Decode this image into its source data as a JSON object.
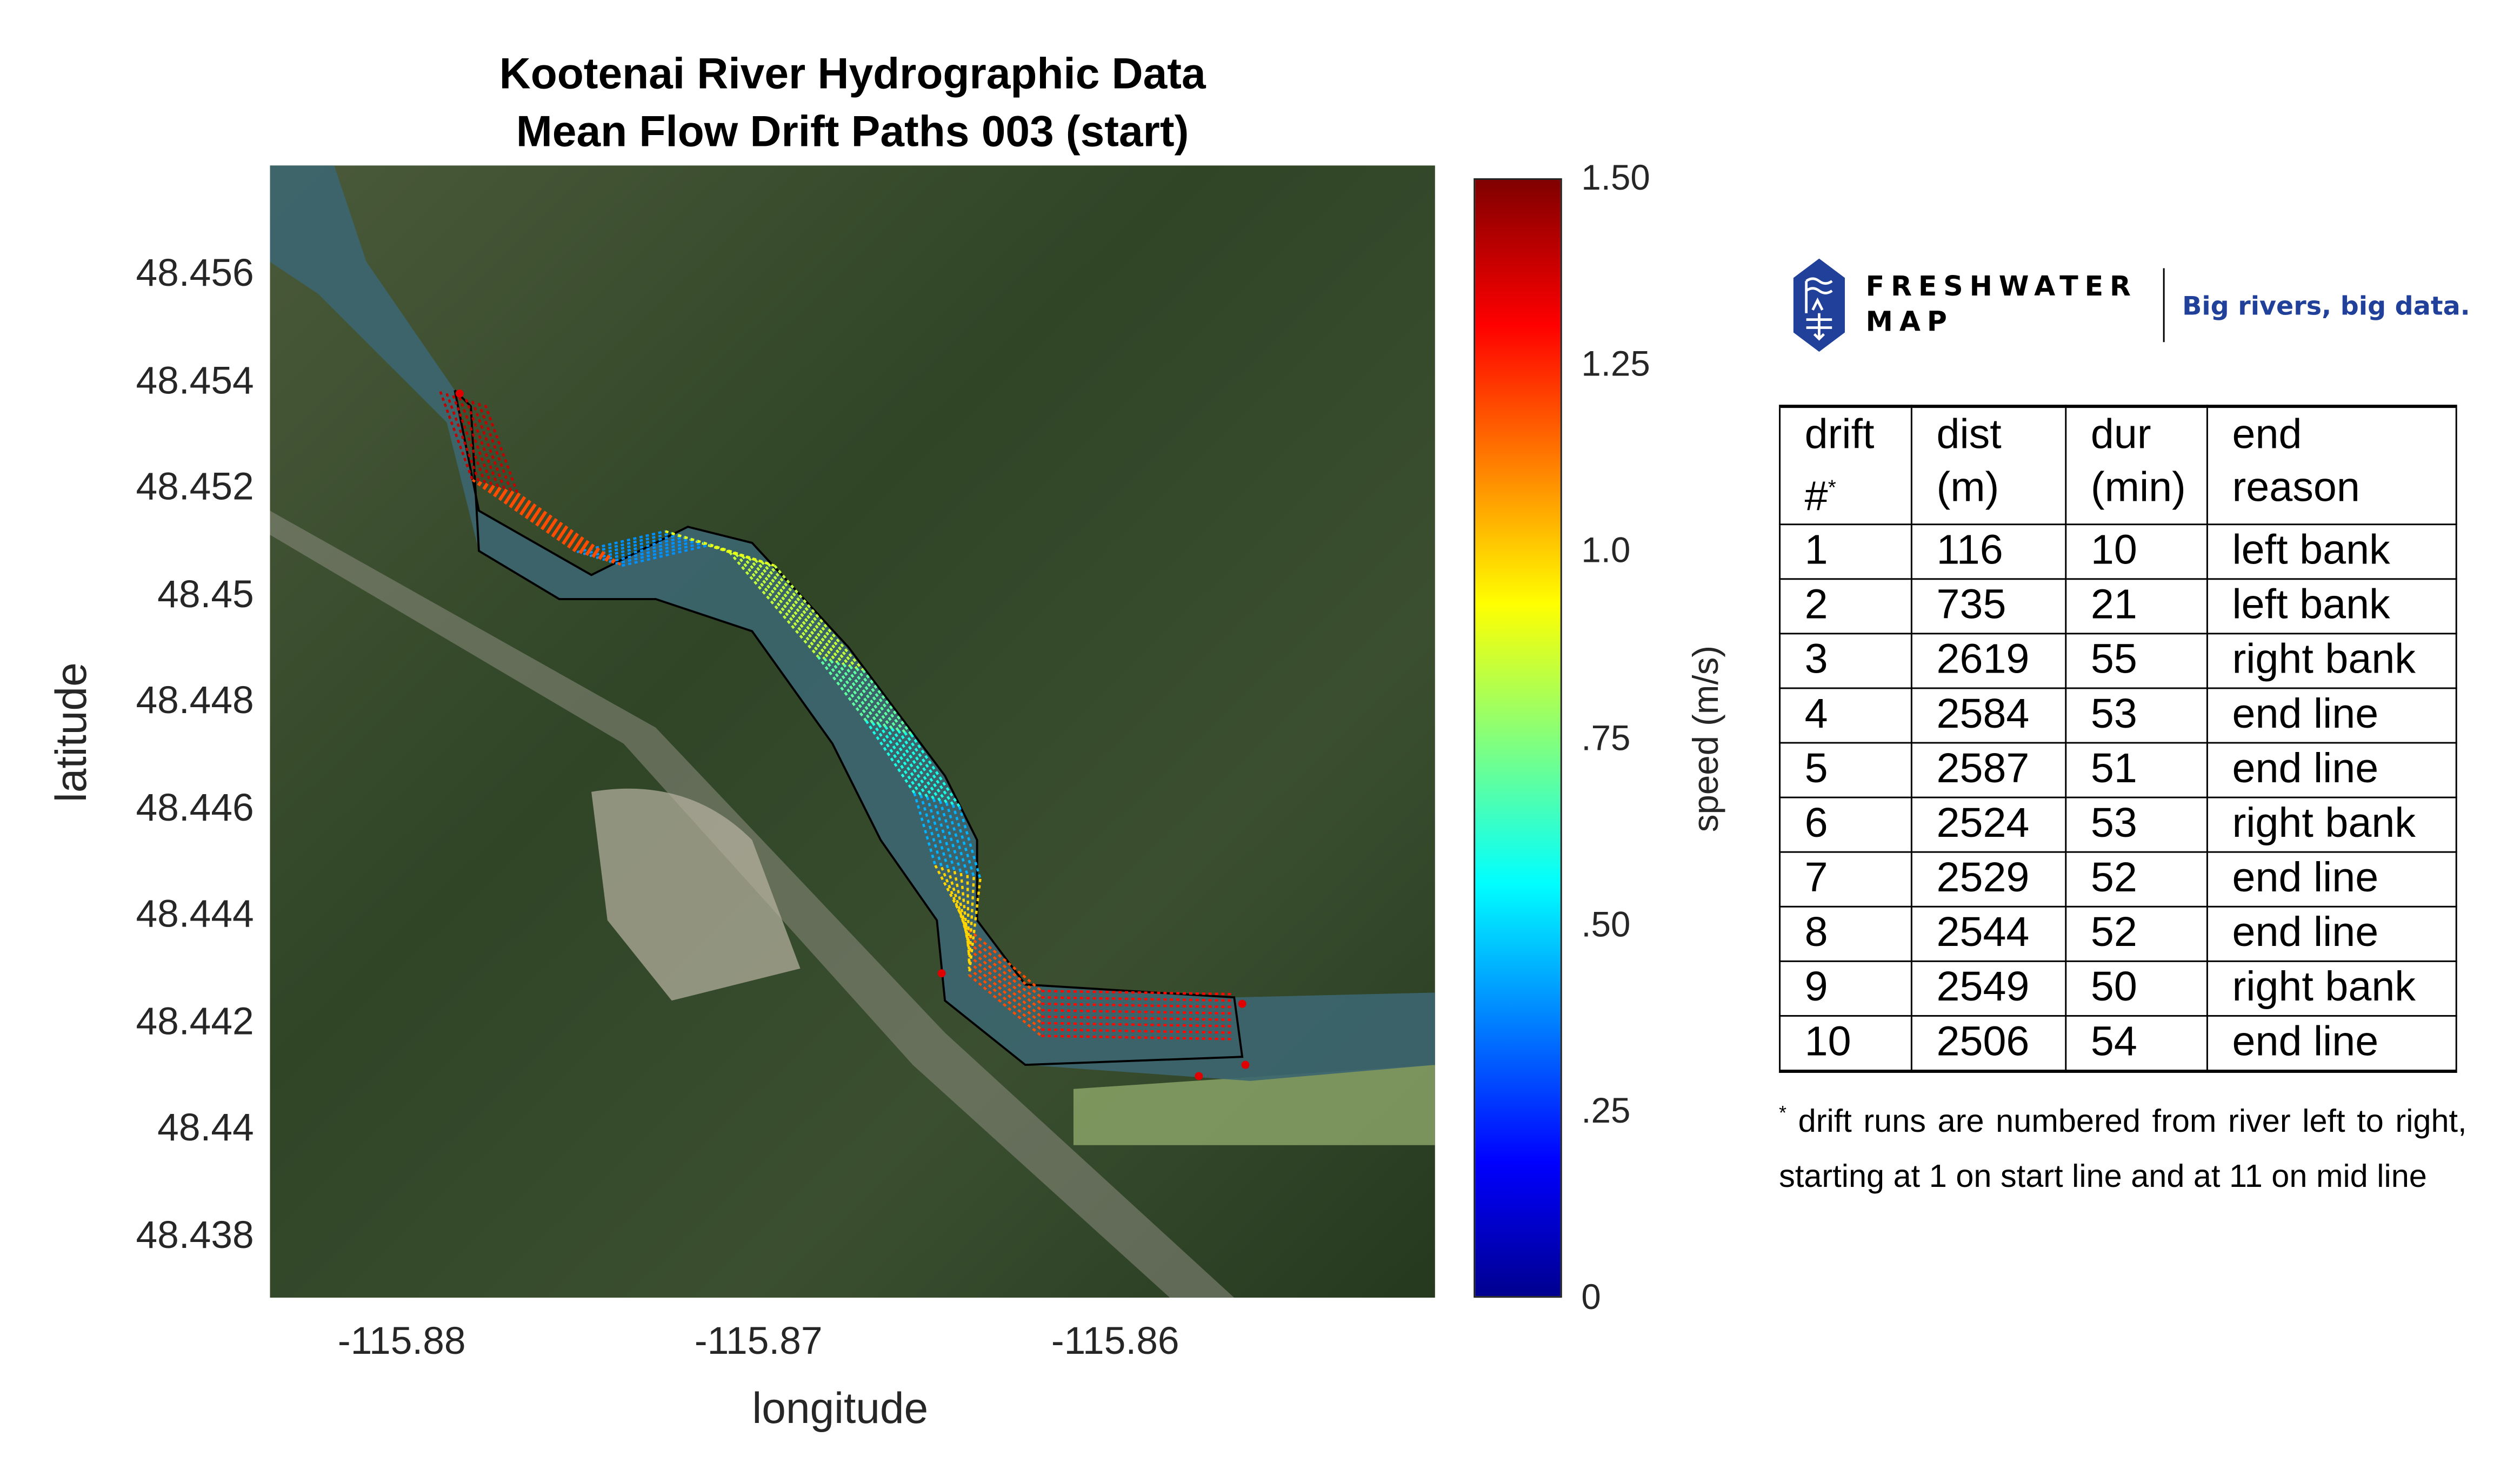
{
  "title_line1": "Kootenai River Hydrographic Data",
  "title_line2": "Mean Flow Drift Paths 003 (start)",
  "map": {
    "xlabel": "longitude",
    "ylabel": "latitude",
    "x_ticks": [
      "-115.88",
      "-115.87",
      "-115.86"
    ],
    "y_ticks": [
      "48.456",
      "48.454",
      "48.452",
      "48.45",
      "48.448",
      "48.446",
      "48.444",
      "48.442",
      "48.44",
      "48.438"
    ],
    "x_range": [
      -115.8837,
      -115.851
    ],
    "y_range": [
      48.4369,
      48.458
    ],
    "basemap": "satellite imagery",
    "river_outline_color": "#000000",
    "marker_color": "#e00000"
  },
  "colorbar": {
    "label": "speed (m/s)",
    "ticks": [
      "1.50",
      "1.25",
      "1.0",
      ".75",
      ".50",
      ".25",
      "0"
    ],
    "range": [
      0,
      1.5
    ],
    "colormap": "jet"
  },
  "logo": {
    "name_line1": "FRESHWATER",
    "name_line2": "MAP",
    "tagline": "Big rivers, big data.",
    "brand_color": "#21409a"
  },
  "table": {
    "headers": [
      [
        "drift",
        "#",
        "*"
      ],
      [
        "dist",
        "(m)"
      ],
      [
        "dur",
        "(min)"
      ],
      [
        "end",
        "reason"
      ]
    ],
    "rows": [
      [
        "1",
        "116",
        "10",
        "left bank"
      ],
      [
        "2",
        "735",
        "21",
        "left bank"
      ],
      [
        "3",
        "2619",
        "55",
        "right bank"
      ],
      [
        "4",
        "2584",
        "53",
        "end line"
      ],
      [
        "5",
        "2587",
        "51",
        "end line"
      ],
      [
        "6",
        "2524",
        "53",
        "right bank"
      ],
      [
        "7",
        "2529",
        "52",
        "end line"
      ],
      [
        "8",
        "2544",
        "52",
        "end line"
      ],
      [
        "9",
        "2549",
        "50",
        "right bank"
      ],
      [
        "10",
        "2506",
        "54",
        "end line"
      ]
    ]
  },
  "footnote_mark": "*",
  "footnote": "drift runs are numbered from river left to right, starting at 1 on start line and at 11 on mid line"
}
